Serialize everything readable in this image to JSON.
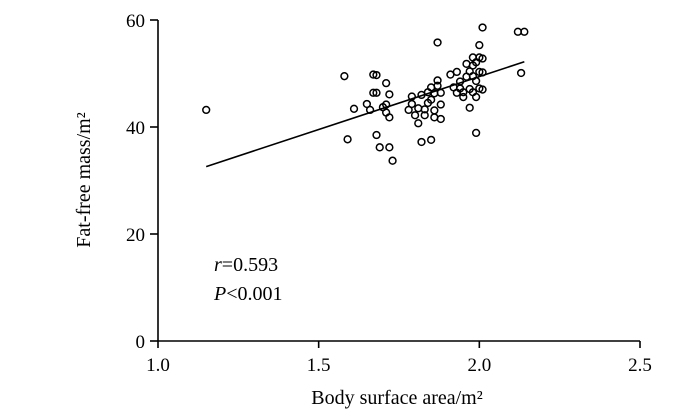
{
  "chart_data": {
    "type": "scatter",
    "title": "",
    "xlabel": "Body surface area/m²",
    "ylabel": "Fat-free mass/m²",
    "xlim": [
      1.0,
      2.5
    ],
    "ylim": [
      0,
      60
    ],
    "x_ticks": [
      1.0,
      1.5,
      2.0,
      2.5
    ],
    "x_tick_labels": [
      "1.0",
      "1.5",
      "2.0",
      "2.5"
    ],
    "y_ticks": [
      0,
      20,
      40,
      60
    ],
    "y_tick_labels": [
      "0",
      "20",
      "40",
      "60"
    ],
    "grid": false,
    "annotations": {
      "r_symbol": "r",
      "r_value": "=0.593",
      "p_symbol": "P",
      "p_value": "<0.001"
    },
    "regression_line": {
      "x": [
        1.15,
        2.14
      ],
      "y": [
        32.6,
        52.2
      ]
    },
    "points": [
      {
        "x": 1.15,
        "y": 43.2
      },
      {
        "x": 1.58,
        "y": 49.5
      },
      {
        "x": 1.59,
        "y": 37.7
      },
      {
        "x": 1.61,
        "y": 43.4
      },
      {
        "x": 1.65,
        "y": 44.3
      },
      {
        "x": 1.66,
        "y": 43.2
      },
      {
        "x": 1.67,
        "y": 49.8
      },
      {
        "x": 1.68,
        "y": 49.7
      },
      {
        "x": 1.67,
        "y": 46.4
      },
      {
        "x": 1.68,
        "y": 46.4
      },
      {
        "x": 1.68,
        "y": 38.5
      },
      {
        "x": 1.69,
        "y": 36.2
      },
      {
        "x": 1.7,
        "y": 43.7
      },
      {
        "x": 1.71,
        "y": 48.2
      },
      {
        "x": 1.71,
        "y": 44.2
      },
      {
        "x": 1.71,
        "y": 42.7
      },
      {
        "x": 1.72,
        "y": 41.8
      },
      {
        "x": 1.72,
        "y": 46.1
      },
      {
        "x": 1.72,
        "y": 36.2
      },
      {
        "x": 1.73,
        "y": 33.7
      },
      {
        "x": 1.78,
        "y": 43.2
      },
      {
        "x": 1.79,
        "y": 44.3
      },
      {
        "x": 1.79,
        "y": 45.7
      },
      {
        "x": 1.8,
        "y": 42.2
      },
      {
        "x": 1.81,
        "y": 40.7
      },
      {
        "x": 1.81,
        "y": 43.5
      },
      {
        "x": 1.82,
        "y": 46.0
      },
      {
        "x": 1.82,
        "y": 37.2
      },
      {
        "x": 1.83,
        "y": 42.2
      },
      {
        "x": 1.83,
        "y": 43.3
      },
      {
        "x": 1.84,
        "y": 46.5
      },
      {
        "x": 1.84,
        "y": 44.5
      },
      {
        "x": 1.85,
        "y": 47.4
      },
      {
        "x": 1.85,
        "y": 45.1
      },
      {
        "x": 1.85,
        "y": 37.6
      },
      {
        "x": 1.86,
        "y": 46.3
      },
      {
        "x": 1.86,
        "y": 43.1
      },
      {
        "x": 1.86,
        "y": 41.8
      },
      {
        "x": 1.87,
        "y": 48.7
      },
      {
        "x": 1.87,
        "y": 47.7
      },
      {
        "x": 1.87,
        "y": 55.8
      },
      {
        "x": 1.88,
        "y": 46.4
      },
      {
        "x": 1.88,
        "y": 44.2
      },
      {
        "x": 1.88,
        "y": 41.5
      },
      {
        "x": 1.91,
        "y": 49.8
      },
      {
        "x": 1.92,
        "y": 47.4
      },
      {
        "x": 1.93,
        "y": 46.4
      },
      {
        "x": 1.93,
        "y": 50.3
      },
      {
        "x": 1.94,
        "y": 48.5
      },
      {
        "x": 1.94,
        "y": 47.2
      },
      {
        "x": 1.95,
        "y": 45.6
      },
      {
        "x": 1.95,
        "y": 46.5
      },
      {
        "x": 1.96,
        "y": 49.4
      },
      {
        "x": 1.96,
        "y": 51.8
      },
      {
        "x": 1.97,
        "y": 50.4
      },
      {
        "x": 1.97,
        "y": 47.1
      },
      {
        "x": 1.97,
        "y": 43.6
      },
      {
        "x": 1.98,
        "y": 53.0
      },
      {
        "x": 1.98,
        "y": 51.5
      },
      {
        "x": 1.98,
        "y": 49.5
      },
      {
        "x": 1.98,
        "y": 46.5
      },
      {
        "x": 1.99,
        "y": 52.1
      },
      {
        "x": 1.99,
        "y": 48.6
      },
      {
        "x": 1.99,
        "y": 45.6
      },
      {
        "x": 1.99,
        "y": 38.9
      },
      {
        "x": 2.0,
        "y": 53.0
      },
      {
        "x": 2.0,
        "y": 55.3
      },
      {
        "x": 2.0,
        "y": 50.3
      },
      {
        "x": 2.0,
        "y": 47.2
      },
      {
        "x": 2.01,
        "y": 58.6
      },
      {
        "x": 2.01,
        "y": 52.8
      },
      {
        "x": 2.01,
        "y": 50.2
      },
      {
        "x": 2.01,
        "y": 47.0
      },
      {
        "x": 2.12,
        "y": 57.8
      },
      {
        "x": 2.14,
        "y": 57.8
      },
      {
        "x": 2.13,
        "y": 50.1
      }
    ]
  }
}
